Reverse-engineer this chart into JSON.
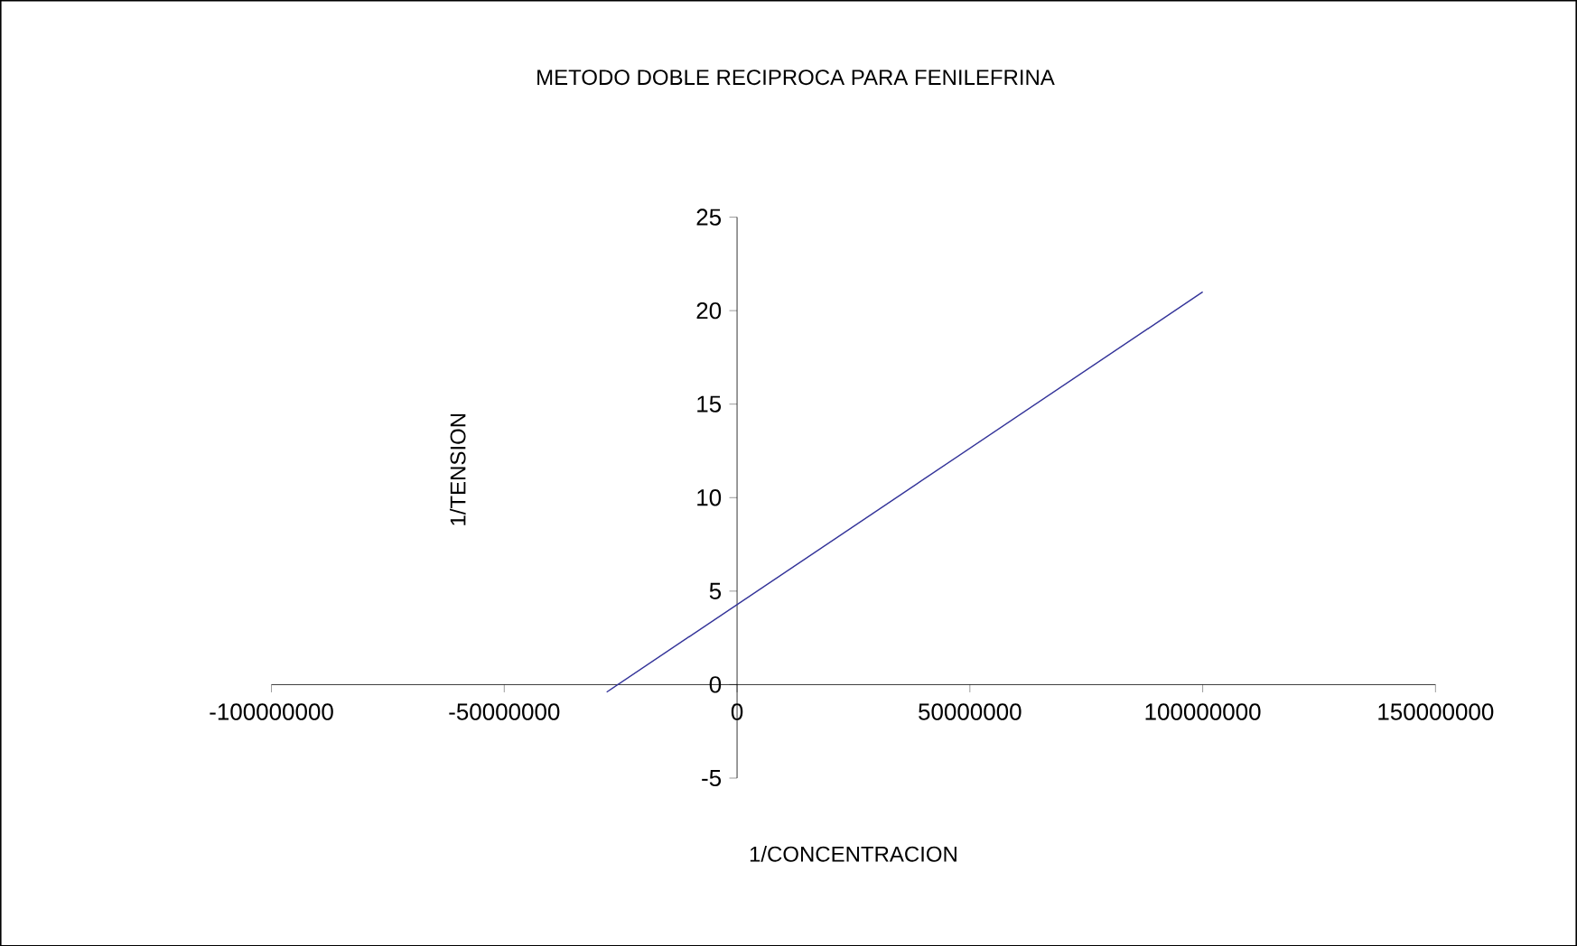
{
  "chart_data": {
    "type": "line",
    "title": "METODO DOBLE RECIPROCA PARA FENILEFRINA",
    "xlabel": "1/CONCENTRACION",
    "ylabel": "1/TENSION",
    "series": [
      {
        "color": "#333399",
        "x": [
          -28000000,
          100000000
        ],
        "values": [
          -0.4,
          21
        ]
      }
    ],
    "xlim": [
      -100000000,
      150000000
    ],
    "ylim": [
      -5,
      25
    ],
    "xticks": [
      -100000000,
      -50000000,
      0,
      50000000,
      100000000,
      150000000
    ],
    "yticks": [
      -5,
      0,
      5,
      10,
      15,
      20,
      25
    ],
    "grid": false,
    "marker": "none",
    "line_style": "solid"
  }
}
